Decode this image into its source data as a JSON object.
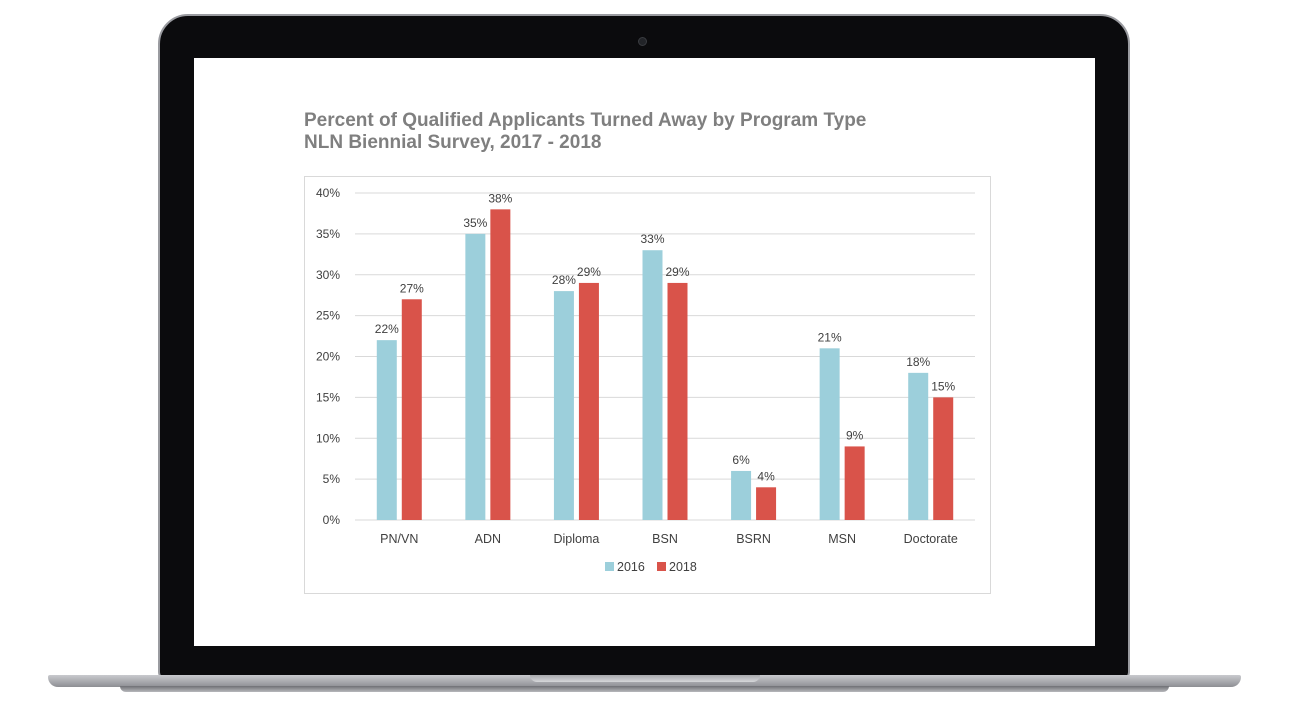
{
  "title": {
    "line1": "Percent of Qualified Applicants Turned Away by Program Type",
    "line2": "NLN Biennial Survey, 2017 - 2018"
  },
  "colors": {
    "series_2016": "#9ccfdb",
    "series_2018": "#d9534a",
    "title": "#7f7f7f",
    "gridline": "#d9d9d9"
  },
  "chart_data": {
    "type": "bar",
    "title": "Percent of Qualified Applicants Turned Away by Program Type NLN Biennial Survey, 2017 - 2018",
    "categories": [
      "PN/VN",
      "ADN",
      "Diploma",
      "BSN",
      "BSRN",
      "MSN",
      "Doctorate"
    ],
    "series": [
      {
        "name": "2016",
        "values": [
          22,
          35,
          28,
          33,
          6,
          21,
          18
        ],
        "labels": [
          "22%",
          "35%",
          "28%",
          "33%",
          "6%",
          "21%",
          "18%"
        ]
      },
      {
        "name": "2018",
        "values": [
          27,
          38,
          29,
          29,
          4,
          9,
          15
        ],
        "labels": [
          "27%",
          "38%",
          "29%",
          "29%",
          "4%",
          "9%",
          "15%"
        ]
      }
    ],
    "yticks": [
      "0%",
      "5%",
      "10%",
      "15%",
      "20%",
      "25%",
      "30%",
      "35%",
      "40%"
    ],
    "ylim": [
      0,
      40
    ],
    "xlabel": "",
    "ylabel": "",
    "grid": true,
    "legend": "bottom"
  }
}
